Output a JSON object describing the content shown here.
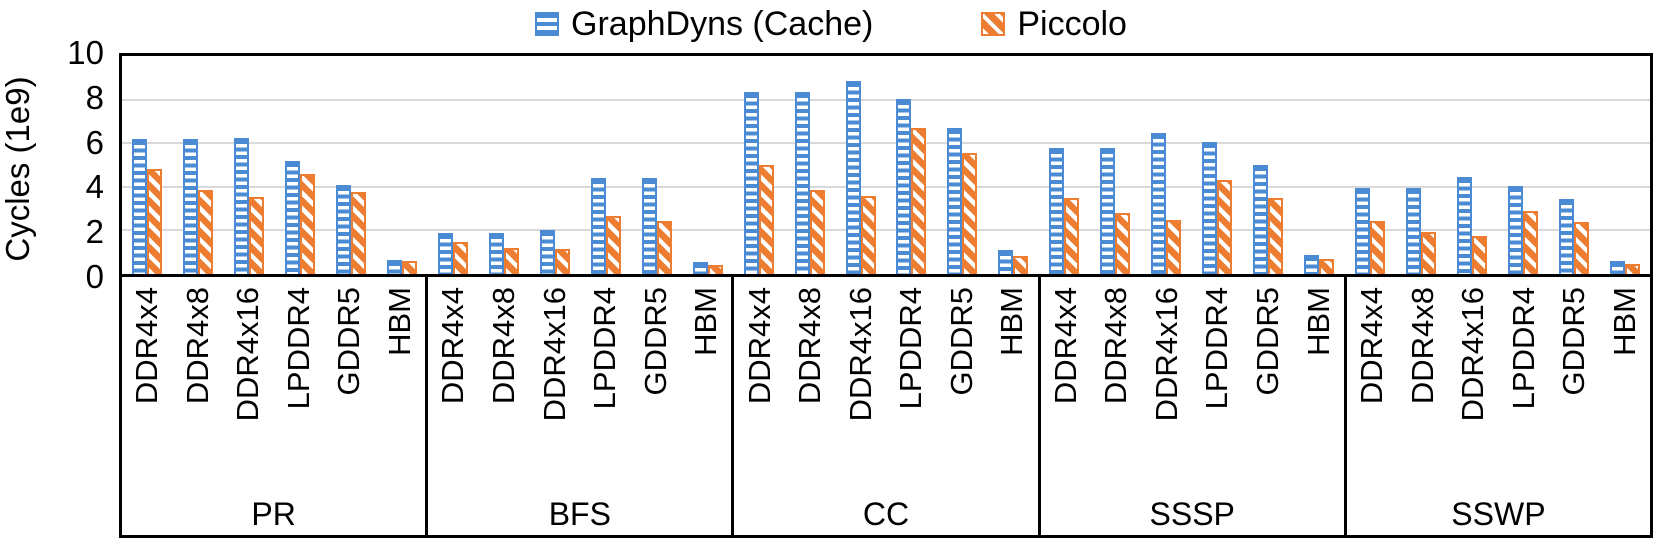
{
  "colors": {
    "blue": "#4A8BD4",
    "orange": "#ED7D31",
    "grid": "#D9D9D9",
    "axis": "#000000"
  },
  "legend": [
    {
      "label": "GraphDyns (Cache)",
      "color": "#4A8BD4",
      "pattern": "horizontal-stripes"
    },
    {
      "label": "Piccolo",
      "color": "#ED7D31",
      "pattern": "diagonal-stripes"
    }
  ],
  "chart_data": {
    "type": "bar",
    "title": "",
    "xlabel": "",
    "ylabel": "Cycles (1e9)",
    "ylim": [
      0,
      10
    ],
    "y_ticks": [
      10,
      8,
      6,
      4,
      2,
      0
    ],
    "grid": true,
    "legend_position": "top",
    "groups": [
      "PR",
      "BFS",
      "CC",
      "SSSP",
      "SSWP"
    ],
    "categories": [
      "DDR4x4",
      "DDR4x8",
      "DDR4x16",
      "LPDDR4",
      "GDDR5",
      "HBM"
    ],
    "series": [
      {
        "name": "GraphDyns (Cache)",
        "color": "#4A8BD4",
        "pattern": "horizontal-stripes",
        "values": {
          "PR": [
            6.2,
            6.2,
            6.25,
            5.2,
            4.1,
            0.65
          ],
          "BFS": [
            1.9,
            1.9,
            2.0,
            4.4,
            4.4,
            0.55
          ],
          "CC": [
            8.35,
            8.35,
            8.85,
            8.05,
            6.7,
            1.1
          ],
          "SSSP": [
            5.8,
            5.8,
            6.45,
            6.05,
            5.0,
            0.85
          ],
          "SSWP": [
            3.95,
            3.95,
            4.45,
            4.05,
            3.45,
            0.6
          ]
        }
      },
      {
        "name": "Piccolo",
        "color": "#ED7D31",
        "pattern": "diagonal-stripes",
        "values": {
          "PR": [
            4.8,
            3.85,
            3.55,
            4.6,
            3.75,
            0.6
          ],
          "BFS": [
            1.45,
            1.2,
            1.15,
            2.65,
            2.45,
            0.42
          ],
          "CC": [
            5.0,
            3.85,
            3.6,
            6.7,
            5.55,
            0.82
          ],
          "SSSP": [
            3.5,
            2.8,
            2.5,
            4.3,
            3.5,
            0.68
          ],
          "SSWP": [
            2.45,
            1.95,
            1.75,
            2.9,
            2.4,
            0.45
          ]
        }
      }
    ]
  }
}
